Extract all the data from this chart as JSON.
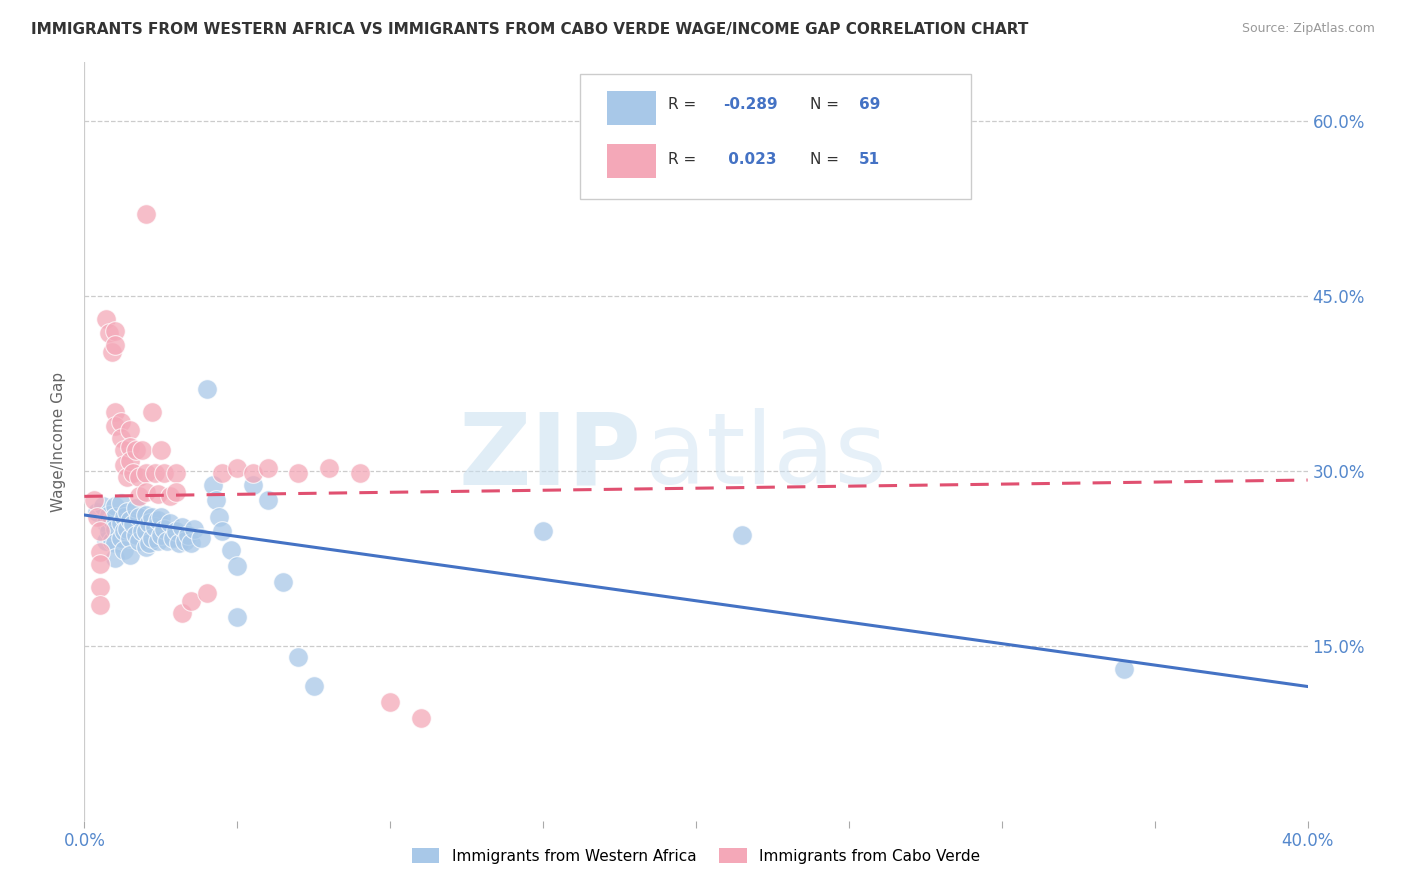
{
  "title": "IMMIGRANTS FROM WESTERN AFRICA VS IMMIGRANTS FROM CABO VERDE WAGE/INCOME GAP CORRELATION CHART",
  "source": "Source: ZipAtlas.com",
  "ylabel": "Wage/Income Gap",
  "yticks": [
    "15.0%",
    "30.0%",
    "45.0%",
    "60.0%"
  ],
  "ytick_vals": [
    0.15,
    0.3,
    0.45,
    0.6
  ],
  "xlim": [
    0.0,
    0.4
  ],
  "ylim": [
    0.0,
    0.65
  ],
  "watermark_zip": "ZIP",
  "watermark_atlas": "atlas",
  "color_blue": "#a8c8e8",
  "color_pink": "#f4a8b8",
  "trendline_blue": "#4472c4",
  "trendline_pink": "#e05070",
  "blue_trendline_x": [
    0.0,
    0.4
  ],
  "blue_trendline_y": [
    0.262,
    0.115
  ],
  "pink_trendline_x": [
    0.0,
    0.4
  ],
  "pink_trendline_y": [
    0.278,
    0.292
  ],
  "blue_scatter": [
    [
      0.004,
      0.265
    ],
    [
      0.006,
      0.27
    ],
    [
      0.007,
      0.255
    ],
    [
      0.007,
      0.24
    ],
    [
      0.008,
      0.262
    ],
    [
      0.008,
      0.248
    ],
    [
      0.009,
      0.258
    ],
    [
      0.009,
      0.24
    ],
    [
      0.01,
      0.27
    ],
    [
      0.01,
      0.26
    ],
    [
      0.01,
      0.25
    ],
    [
      0.01,
      0.238
    ],
    [
      0.01,
      0.225
    ],
    [
      0.012,
      0.272
    ],
    [
      0.012,
      0.255
    ],
    [
      0.012,
      0.242
    ],
    [
      0.013,
      0.26
    ],
    [
      0.013,
      0.248
    ],
    [
      0.013,
      0.232
    ],
    [
      0.014,
      0.265
    ],
    [
      0.014,
      0.25
    ],
    [
      0.015,
      0.258
    ],
    [
      0.015,
      0.242
    ],
    [
      0.015,
      0.228
    ],
    [
      0.016,
      0.254
    ],
    [
      0.017,
      0.268
    ],
    [
      0.017,
      0.245
    ],
    [
      0.018,
      0.26
    ],
    [
      0.018,
      0.24
    ],
    [
      0.019,
      0.248
    ],
    [
      0.02,
      0.262
    ],
    [
      0.02,
      0.248
    ],
    [
      0.02,
      0.235
    ],
    [
      0.021,
      0.255
    ],
    [
      0.021,
      0.238
    ],
    [
      0.022,
      0.26
    ],
    [
      0.022,
      0.242
    ],
    [
      0.023,
      0.252
    ],
    [
      0.024,
      0.258
    ],
    [
      0.024,
      0.24
    ],
    [
      0.025,
      0.26
    ],
    [
      0.025,
      0.245
    ],
    [
      0.026,
      0.25
    ],
    [
      0.027,
      0.24
    ],
    [
      0.028,
      0.255
    ],
    [
      0.029,
      0.242
    ],
    [
      0.03,
      0.248
    ],
    [
      0.031,
      0.238
    ],
    [
      0.032,
      0.252
    ],
    [
      0.033,
      0.24
    ],
    [
      0.034,
      0.245
    ],
    [
      0.035,
      0.238
    ],
    [
      0.036,
      0.25
    ],
    [
      0.038,
      0.242
    ],
    [
      0.04,
      0.37
    ],
    [
      0.042,
      0.288
    ],
    [
      0.043,
      0.275
    ],
    [
      0.044,
      0.26
    ],
    [
      0.045,
      0.248
    ],
    [
      0.048,
      0.232
    ],
    [
      0.05,
      0.218
    ],
    [
      0.05,
      0.175
    ],
    [
      0.055,
      0.288
    ],
    [
      0.06,
      0.275
    ],
    [
      0.065,
      0.205
    ],
    [
      0.07,
      0.14
    ],
    [
      0.075,
      0.115
    ],
    [
      0.15,
      0.248
    ],
    [
      0.215,
      0.245
    ],
    [
      0.34,
      0.13
    ]
  ],
  "pink_scatter": [
    [
      0.003,
      0.275
    ],
    [
      0.004,
      0.26
    ],
    [
      0.005,
      0.248
    ],
    [
      0.005,
      0.23
    ],
    [
      0.005,
      0.22
    ],
    [
      0.005,
      0.2
    ],
    [
      0.005,
      0.185
    ],
    [
      0.007,
      0.43
    ],
    [
      0.008,
      0.418
    ],
    [
      0.009,
      0.402
    ],
    [
      0.01,
      0.42
    ],
    [
      0.01,
      0.408
    ],
    [
      0.01,
      0.35
    ],
    [
      0.01,
      0.338
    ],
    [
      0.012,
      0.342
    ],
    [
      0.012,
      0.328
    ],
    [
      0.013,
      0.318
    ],
    [
      0.013,
      0.305
    ],
    [
      0.014,
      0.295
    ],
    [
      0.015,
      0.335
    ],
    [
      0.015,
      0.32
    ],
    [
      0.015,
      0.308
    ],
    [
      0.016,
      0.298
    ],
    [
      0.017,
      0.318
    ],
    [
      0.018,
      0.295
    ],
    [
      0.018,
      0.278
    ],
    [
      0.019,
      0.318
    ],
    [
      0.02,
      0.52
    ],
    [
      0.02,
      0.298
    ],
    [
      0.02,
      0.282
    ],
    [
      0.022,
      0.35
    ],
    [
      0.023,
      0.298
    ],
    [
      0.024,
      0.28
    ],
    [
      0.025,
      0.318
    ],
    [
      0.026,
      0.298
    ],
    [
      0.028,
      0.278
    ],
    [
      0.03,
      0.298
    ],
    [
      0.03,
      0.282
    ],
    [
      0.032,
      0.178
    ],
    [
      0.035,
      0.188
    ],
    [
      0.04,
      0.195
    ],
    [
      0.045,
      0.298
    ],
    [
      0.05,
      0.302
    ],
    [
      0.055,
      0.298
    ],
    [
      0.06,
      0.302
    ],
    [
      0.07,
      0.298
    ],
    [
      0.08,
      0.302
    ],
    [
      0.09,
      0.298
    ],
    [
      0.1,
      0.102
    ],
    [
      0.11,
      0.088
    ]
  ]
}
